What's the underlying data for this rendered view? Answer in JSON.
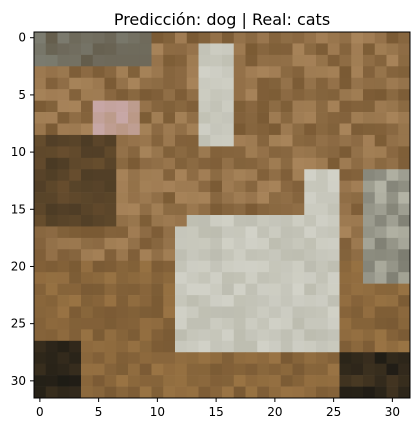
{
  "chart_data": {
    "type": "heatmap",
    "title": "Predicción: dog | Real: cats",
    "x_ticks": [
      "0",
      "5",
      "10",
      "15",
      "20",
      "25",
      "30"
    ],
    "y_ticks": [
      "0",
      "5",
      "10",
      "15",
      "20",
      "25",
      "30"
    ],
    "xlim": [
      -0.5,
      31.5
    ],
    "ylim": [
      31.5,
      -0.5
    ],
    "image_size": [
      32,
      32
    ],
    "grid": false,
    "palette": {
      "dark": "#1c1a14",
      "brown_dark": "#4a3a24",
      "brown": "#7a5a34",
      "brown_light": "#9a7444",
      "tan": "#a8845a",
      "fur_white": "#d2d2c8",
      "fur_grey": "#b4b4a6",
      "pink": "#c8a8a8",
      "grey_bg": "#7c7c70"
    }
  }
}
